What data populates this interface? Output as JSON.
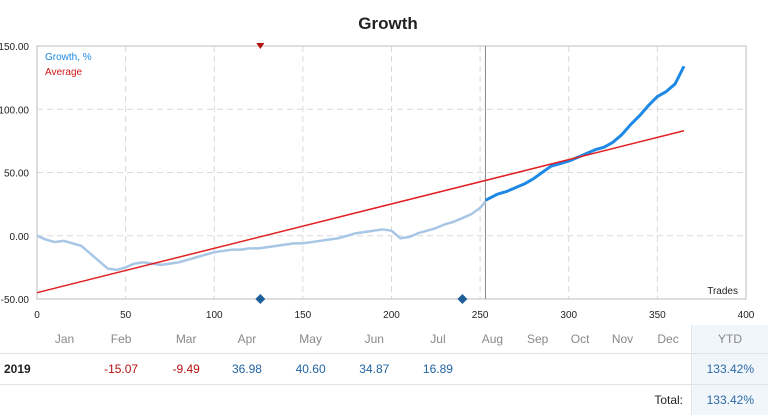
{
  "chart_data": {
    "type": "line",
    "title": "Growth",
    "xlabel": "Trades",
    "ylabel": "",
    "xlim": [
      0,
      400
    ],
    "ylim": [
      -50,
      150
    ],
    "x_ticks": [
      "0",
      "50",
      "100",
      "150",
      "200",
      "250",
      "300",
      "350",
      "400"
    ],
    "y_ticks": [
      "150.00",
      "100.00",
      "50.00",
      "0.00",
      "-50.00"
    ],
    "grid": true,
    "legend_position": "top-left",
    "divider_x": 253,
    "series": [
      {
        "name": "Growth, %",
        "color": "#1e88e5",
        "segments": [
          {
            "style": "faded",
            "color": "#a8c6e6",
            "x": [
              0,
              5,
              10,
              15,
              20,
              25,
              30,
              35,
              40,
              45,
              50,
              55,
              60,
              65,
              70,
              75,
              80,
              85,
              90,
              95,
              100,
              105,
              110,
              115,
              120,
              125,
              130,
              135,
              140,
              145,
              150,
              155,
              160,
              165,
              170,
              175,
              180,
              185,
              190,
              195,
              200,
              205,
              210,
              215,
              220,
              225,
              230,
              235,
              240,
              245,
              250,
              253
            ],
            "y": [
              0,
              -3,
              -5,
              -4,
              -6,
              -8,
              -14,
              -20,
              -26,
              -27,
              -25,
              -22,
              -21,
              -22,
              -23,
              -22,
              -21,
              -19,
              -17,
              -15,
              -13,
              -12,
              -11,
              -11,
              -10,
              -10,
              -9,
              -8,
              -7,
              -6,
              -6,
              -5,
              -4,
              -3,
              -2,
              0,
              2,
              3,
              4,
              5,
              4,
              -2,
              -1,
              2,
              4,
              6,
              9,
              11,
              14,
              17,
              22,
              27
            ]
          },
          {
            "style": "solid",
            "color": "#1e88e5",
            "x": [
              253,
              260,
              265,
              270,
              275,
              280,
              285,
              290,
              295,
              300,
              305,
              310,
              315,
              320,
              325,
              330,
              335,
              340,
              345,
              350,
              355,
              360,
              365
            ],
            "y": [
              28,
              33,
              35,
              38,
              41,
              45,
              50,
              55,
              57,
              59,
              62,
              65,
              68,
              70,
              74,
              80,
              88,
              95,
              103,
              110,
              114,
              120,
              134
            ]
          }
        ]
      },
      {
        "name": "Average",
        "color": "#e02020",
        "x": [
          0,
          365
        ],
        "y": [
          -45,
          83
        ]
      }
    ],
    "markers": [
      {
        "type": "down-triangle",
        "x": 126,
        "position": "top",
        "color": "#b50f0f"
      },
      {
        "type": "diamond",
        "x": 126,
        "position": "bottom",
        "color": "#1f5f99"
      },
      {
        "type": "diamond",
        "x": 240,
        "position": "bottom",
        "color": "#1f5f99"
      }
    ]
  },
  "table": {
    "months": [
      "Jan",
      "Feb",
      "Mar",
      "Apr",
      "May",
      "Jun",
      "Jul",
      "Aug",
      "Sep",
      "Oct",
      "Nov",
      "Dec"
    ],
    "ytd_header": "YTD",
    "year": "2019",
    "values": [
      "",
      "-15.07",
      "-9.49",
      "36.98",
      "40.60",
      "34.87",
      "16.89",
      "",
      "",
      "",
      "",
      ""
    ],
    "ytd_value": "133.42%",
    "total_label": "Total:",
    "total_value": "133.42%"
  }
}
